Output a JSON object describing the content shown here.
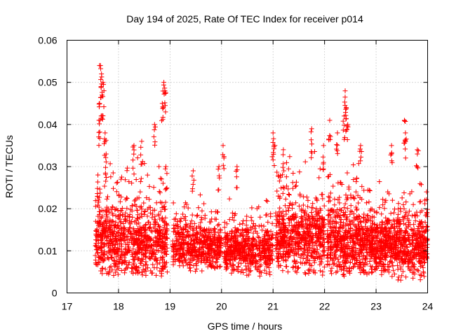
{
  "chart_data": {
    "type": "scatter",
    "title": "Day 194 of 2025, Rate Of TEC Index for receiver p014",
    "xlabel": "GPS time / hours",
    "ylabel": "ROTI / TECUs",
    "xlim": [
      17,
      24
    ],
    "ylim": [
      0,
      0.06
    ],
    "xticks": [
      17,
      18,
      19,
      20,
      21,
      22,
      23,
      24
    ],
    "xtick_labels": [
      "17",
      "18",
      "19",
      "20",
      "21",
      "22",
      "23",
      "24"
    ],
    "yticks": [
      0,
      0.01,
      0.02,
      0.03,
      0.04,
      0.05,
      0.06
    ],
    "ytick_labels": [
      "0",
      "0.01",
      "0.02",
      "0.03",
      "0.04",
      "0.05",
      "0.06"
    ],
    "grid": true,
    "marker": "+",
    "color": "#ff0000",
    "series": [
      {
        "name": "ROTI",
        "clusters": [
          {
            "x_range": [
              17.55,
              18.95
            ],
            "baseline": 0.012,
            "spread": 0.006,
            "min": 0.004,
            "n": 900
          },
          {
            "x_range": [
              19.05,
              20.0
            ],
            "baseline": 0.011,
            "spread": 0.004,
            "min": 0.005,
            "n": 550
          },
          {
            "x_range": [
              20.05,
              21.0
            ],
            "baseline": 0.01,
            "spread": 0.004,
            "min": 0.004,
            "n": 550
          },
          {
            "x_range": [
              21.05,
              22.0
            ],
            "baseline": 0.013,
            "spread": 0.006,
            "min": 0.004,
            "n": 650
          },
          {
            "x_range": [
              22.05,
              22.95
            ],
            "baseline": 0.012,
            "spread": 0.006,
            "min": 0.004,
            "n": 650
          },
          {
            "x_range": [
              22.95,
              24.0
            ],
            "baseline": 0.011,
            "spread": 0.005,
            "min": 0.003,
            "n": 750
          }
        ],
        "peaks": [
          {
            "x": 17.6,
            "y": 0.028
          },
          {
            "x": 17.63,
            "y": 0.045
          },
          {
            "x": 17.65,
            "y": 0.054
          },
          {
            "x": 17.67,
            "y": 0.052
          },
          {
            "x": 17.68,
            "y": 0.047
          },
          {
            "x": 17.7,
            "y": 0.05
          },
          {
            "x": 17.62,
            "y": 0.041
          },
          {
            "x": 17.74,
            "y": 0.038
          },
          {
            "x": 17.76,
            "y": 0.033
          },
          {
            "x": 18.3,
            "y": 0.035
          },
          {
            "x": 18.45,
            "y": 0.036
          },
          {
            "x": 18.7,
            "y": 0.04
          },
          {
            "x": 18.85,
            "y": 0.045
          },
          {
            "x": 18.88,
            "y": 0.05
          },
          {
            "x": 18.9,
            "y": 0.048
          },
          {
            "x": 18.92,
            "y": 0.03
          },
          {
            "x": 19.45,
            "y": 0.029
          },
          {
            "x": 19.95,
            "y": 0.03
          },
          {
            "x": 20.03,
            "y": 0.035
          },
          {
            "x": 20.3,
            "y": 0.03
          },
          {
            "x": 21.0,
            "y": 0.038
          },
          {
            "x": 21.02,
            "y": 0.035
          },
          {
            "x": 21.2,
            "y": 0.034
          },
          {
            "x": 21.75,
            "y": 0.039
          },
          {
            "x": 21.98,
            "y": 0.035
          },
          {
            "x": 22.1,
            "y": 0.041
          },
          {
            "x": 22.25,
            "y": 0.038
          },
          {
            "x": 22.4,
            "y": 0.048
          },
          {
            "x": 22.42,
            "y": 0.044
          },
          {
            "x": 22.38,
            "y": 0.042
          },
          {
            "x": 22.45,
            "y": 0.04
          },
          {
            "x": 22.7,
            "y": 0.035
          },
          {
            "x": 23.3,
            "y": 0.035
          },
          {
            "x": 23.55,
            "y": 0.041
          },
          {
            "x": 23.57,
            "y": 0.038
          },
          {
            "x": 23.8,
            "y": 0.034
          },
          {
            "x": 23.98,
            "y": 0.024
          }
        ]
      }
    ]
  }
}
